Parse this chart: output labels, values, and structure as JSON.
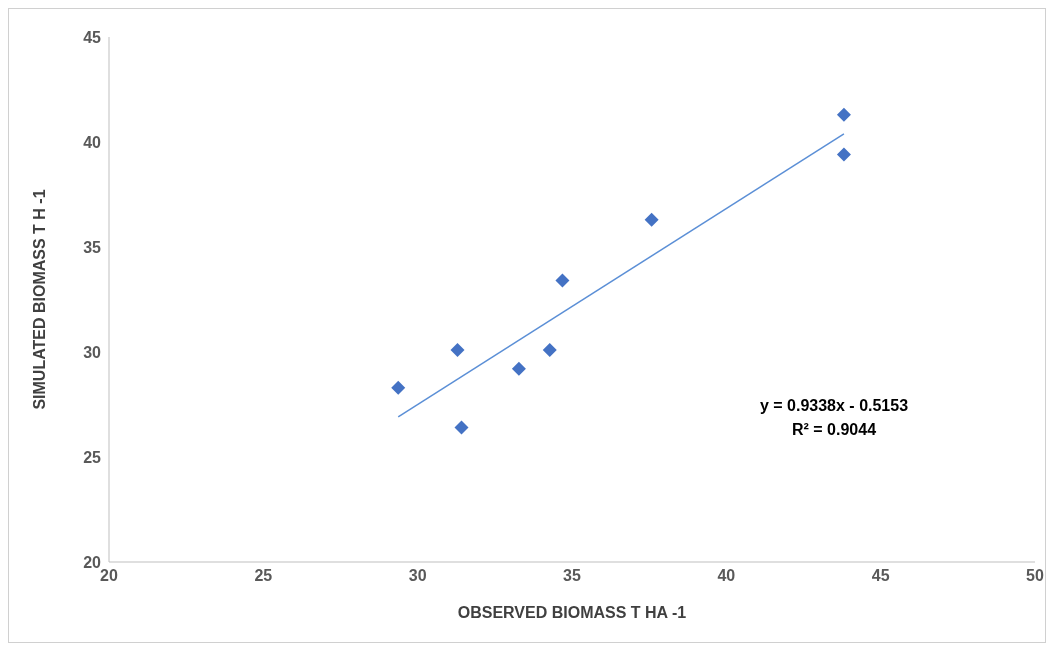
{
  "chart_data": {
    "type": "scatter",
    "xlabel": "OBSERVED BIOMASS T HA -1",
    "ylabel": "SIMULATED BIOMASS T H -1",
    "xlim": [
      20,
      50
    ],
    "xticks": [
      20,
      25,
      30,
      35,
      40,
      45,
      50
    ],
    "ylim": [
      20,
      45
    ],
    "yticks": [
      20,
      25,
      30,
      35,
      40,
      45
    ],
    "grid": false,
    "legend": false,
    "marker": "diamond",
    "series": [
      {
        "color": "#4472c4",
        "x": [
          29.37,
          31.29,
          31.42,
          33.28,
          34.28,
          34.69,
          37.58,
          43.81,
          43.81
        ],
        "values": [
          28.3,
          30.1,
          26.4,
          29.2,
          30.1,
          33.4,
          36.3,
          41.3,
          39.4
        ]
      },
      {
        "type": "line",
        "color": "#5b8fd6",
        "marker": "none",
        "line_style": "solid",
        "x": [
          29.37,
          43.81
        ],
        "values": [
          26.91,
          40.39
        ]
      }
    ],
    "annotations": [
      "y = 0.9338x - 0.5153",
      "R² = 0.9044"
    ]
  }
}
